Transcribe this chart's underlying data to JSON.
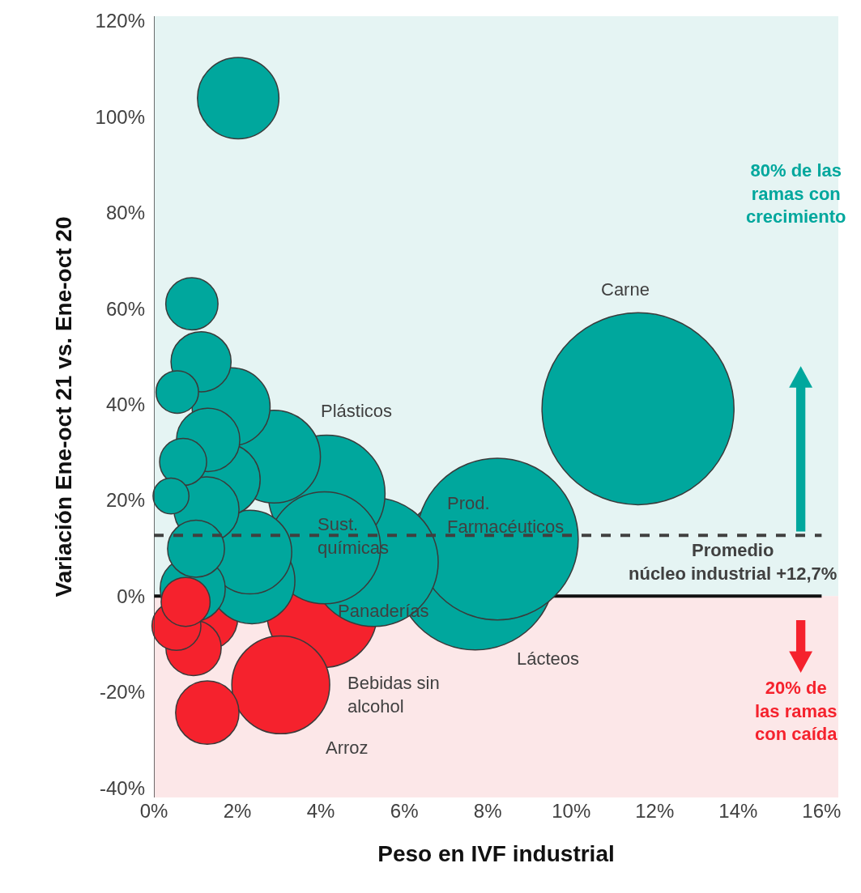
{
  "chart_data": {
    "type": "bubble",
    "xlabel": "Peso en IVF industrial",
    "ylabel": "Variación Ene-oct 21 vs. Ene-oct 20",
    "series": [
      {
        "color": "#f5222d",
        "x": [
          4.03,
          3.04,
          1.23,
          1.28,
          0.95,
          0.54
        ],
        "values": [
          -3.4,
          -18.5,
          -4.5,
          -24.3,
          -10.8,
          -6.2
        ],
        "sizes": [
          0.33,
          0.26,
          0.115,
          0.109,
          0.083,
          0.065
        ]
      },
      {
        "color": "#00a79d",
        "x": [
          11.6,
          7.7,
          8.23,
          5.27,
          4.14,
          4.09,
          2.88,
          2.35,
          2.3,
          2.02,
          1.85,
          1.67,
          0.93,
          1.26,
          1.3,
          1.13,
          1.01,
          0.91,
          0.7,
          0.56,
          0.41
        ],
        "values": [
          39.1,
          5.4,
          11.9,
          7.1,
          21.4,
          10.1,
          29.1,
          3.2,
          9.2,
          103.9,
          39.5,
          24.3,
          1.5,
          18.1,
          32.6,
          48.9,
          9.9,
          61.0,
          28.0,
          42.6,
          20.9
        ],
        "sizes": [
          1,
          0.69,
          0.71,
          0.45,
          0.37,
          0.34,
          0.233,
          0.2,
          0.19,
          0.18,
          0.165,
          0.145,
          0.115,
          0.115,
          0.109,
          0.098,
          0.088,
          0.074,
          0.06,
          0.049,
          0.035
        ]
      },
      {
        "color": "#f5222d",
        "x": [
          0.76
        ],
        "values": [
          -1.2
        ],
        "sizes": [
          0.065
        ]
      }
    ],
    "xlim": [
      0,
      16.4
    ],
    "xticks": [
      {
        "value": 0,
        "label": "0%"
      },
      {
        "value": 2,
        "label": "2%"
      },
      {
        "value": 4,
        "label": "4%"
      },
      {
        "value": 6,
        "label": "6%"
      },
      {
        "value": 8,
        "label": "8%"
      },
      {
        "value": 10,
        "label": "10%"
      },
      {
        "value": 12,
        "label": "12%"
      },
      {
        "value": 14,
        "label": "14%"
      },
      {
        "value": 16,
        "label": "16%"
      }
    ],
    "ylim": [
      -42,
      121
    ],
    "yticks": [
      {
        "value": -40,
        "label": "-40%"
      },
      {
        "value": -20,
        "label": "-20%"
      },
      {
        "value": 0,
        "label": "0%"
      },
      {
        "value": 20,
        "label": "20%"
      },
      {
        "value": 40,
        "label": "40%"
      },
      {
        "value": 60,
        "label": "60%"
      },
      {
        "value": 80,
        "label": "80%"
      },
      {
        "value": 100,
        "label": "100%"
      },
      {
        "value": 120,
        "label": "120%"
      }
    ],
    "bands": [
      {
        "axis": "y",
        "from": 0,
        "to": 121,
        "color": "#e5f4f3"
      },
      {
        "axis": "y",
        "from": -42,
        "to": 0,
        "color": "#fce7e8"
      }
    ],
    "ref_lines": [
      {
        "axis": "y",
        "value": 0,
        "color": "#111111",
        "line_style": "solid"
      },
      {
        "axis": "y",
        "value": 12.7,
        "label": "Promedio\nnúcleo industrial +12,7%",
        "color": "#404040",
        "line_style": "dashed"
      }
    ],
    "annotations": [
      "Carne",
      "Plásticos",
      "Sust.\nquímicas",
      "Prod.\nFarmacéuticos",
      "Panaderías",
      "Lácteos",
      "Bebidas sin\nalcohol",
      "Arroz",
      "80% de las\nramas con\ncrecimiento",
      "20% de\nlas ramas\ncon caída"
    ],
    "grid": false
  }
}
